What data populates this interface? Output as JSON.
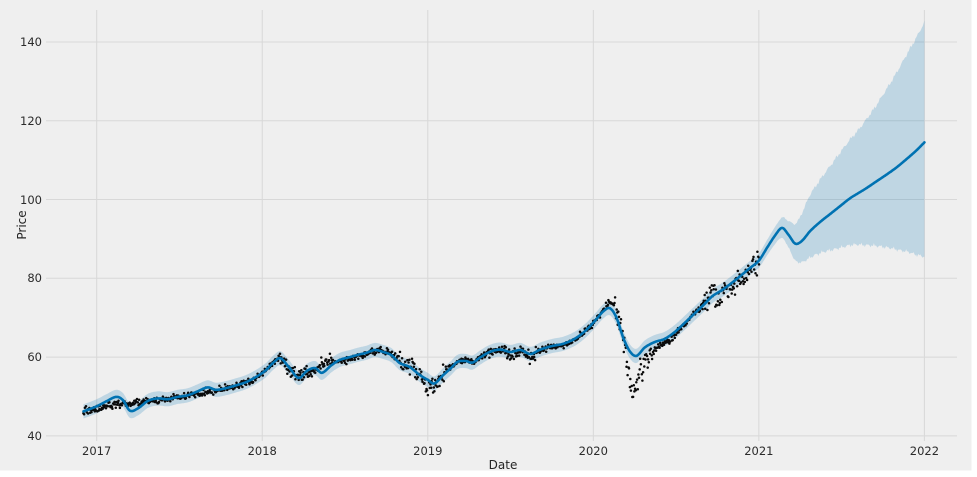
{
  "figure": {
    "bg_color": "#efefef",
    "page_bg": "#ffffff",
    "fig_width": 971.5,
    "fig_height": 470.5
  },
  "axes": {
    "xlabel": "Date",
    "ylabel": "Price",
    "grid_color": "#d8d8d8",
    "tick_text_color": "#2b2b2b",
    "x_ticks": [
      {
        "value": 2017,
        "label": "2017"
      },
      {
        "value": 2018,
        "label": "2018"
      },
      {
        "value": 2019,
        "label": "2019"
      },
      {
        "value": 2020,
        "label": "2020"
      },
      {
        "value": 2021,
        "label": "2021"
      },
      {
        "value": 2022,
        "label": "2022"
      }
    ],
    "y_ticks": [
      {
        "value": 40,
        "label": "40"
      },
      {
        "value": 60,
        "label": "60"
      },
      {
        "value": 80,
        "label": "80"
      },
      {
        "value": 100,
        "label": "100"
      },
      {
        "value": 120,
        "label": "120"
      },
      {
        "value": 140,
        "label": "140"
      }
    ]
  },
  "chart_data": {
    "type": "line",
    "subtype": "forecast-with-uncertainty-band-and-observed-scatter",
    "title": "",
    "xlabel": "Date",
    "ylabel": "Price",
    "x_range": [
      2016.71,
      2022.2
    ],
    "y_range": [
      38.7,
      148.2
    ],
    "grid": true,
    "legend": "none",
    "series": [
      {
        "name": "observed",
        "type": "scatter",
        "color": "#0a0a0a",
        "marker_radius": 1.25,
        "t_start": 2016.92,
        "t_end": 2021.005,
        "sample_step": 0.004,
        "seed": 42,
        "noise_sigma_default": 0.45,
        "noise_sigma_segments": [
          [
            2018.09,
            2018.42,
            0.9
          ],
          [
            2018.83,
            2019.1,
            1.1
          ],
          [
            2019.46,
            2019.66,
            0.8
          ],
          [
            2020.13,
            2020.36,
            1.7
          ],
          [
            2020.66,
            2021.01,
            1.5
          ]
        ],
        "keypoints": [
          [
            2016.92,
            46.3
          ],
          [
            2017.0,
            46.8
          ],
          [
            2017.1,
            47.8
          ],
          [
            2017.2,
            48.2
          ],
          [
            2017.3,
            48.7
          ],
          [
            2017.4,
            49.2
          ],
          [
            2017.5,
            49.8
          ],
          [
            2017.6,
            50.6
          ],
          [
            2017.7,
            51.3
          ],
          [
            2017.8,
            52.2
          ],
          [
            2017.9,
            53.4
          ],
          [
            2017.96,
            54.5
          ],
          [
            2018.02,
            56.5
          ],
          [
            2018.07,
            58.7
          ],
          [
            2018.11,
            59.8
          ],
          [
            2018.15,
            57.5
          ],
          [
            2018.19,
            56.0
          ],
          [
            2018.23,
            55.0
          ],
          [
            2018.28,
            56.2
          ],
          [
            2018.33,
            57.0
          ],
          [
            2018.38,
            58.5
          ],
          [
            2018.44,
            59.2
          ],
          [
            2018.5,
            59.0
          ],
          [
            2018.56,
            59.8
          ],
          [
            2018.62,
            60.8
          ],
          [
            2018.68,
            61.6
          ],
          [
            2018.74,
            61.5
          ],
          [
            2018.8,
            60.2
          ],
          [
            2018.86,
            58.5
          ],
          [
            2018.91,
            57.5
          ],
          [
            2018.95,
            55.0
          ],
          [
            2019.0,
            52.5
          ],
          [
            2019.03,
            52.8
          ],
          [
            2019.07,
            54.8
          ],
          [
            2019.12,
            56.8
          ],
          [
            2019.17,
            58.3
          ],
          [
            2019.22,
            59.2
          ],
          [
            2019.27,
            58.7
          ],
          [
            2019.32,
            60.0
          ],
          [
            2019.38,
            61.2
          ],
          [
            2019.44,
            61.7
          ],
          [
            2019.5,
            60.8
          ],
          [
            2019.56,
            61.4
          ],
          [
            2019.62,
            60.2
          ],
          [
            2019.68,
            61.8
          ],
          [
            2019.75,
            62.7
          ],
          [
            2019.82,
            63.2
          ],
          [
            2019.89,
            64.6
          ],
          [
            2019.95,
            66.8
          ],
          [
            2020.01,
            69.3
          ],
          [
            2020.06,
            71.8
          ],
          [
            2020.1,
            73.8
          ],
          [
            2020.13,
            73.0
          ],
          [
            2020.16,
            68.5
          ],
          [
            2020.19,
            61.0
          ],
          [
            2020.22,
            53.5
          ],
          [
            2020.245,
            51.0
          ],
          [
            2020.27,
            54.5
          ],
          [
            2020.31,
            58.5
          ],
          [
            2020.36,
            61.0
          ],
          [
            2020.41,
            63.0
          ],
          [
            2020.46,
            64.0
          ],
          [
            2020.51,
            66.5
          ],
          [
            2020.57,
            69.0
          ],
          [
            2020.63,
            72.0
          ],
          [
            2020.68,
            74.5
          ],
          [
            2020.72,
            76.0
          ],
          [
            2020.76,
            74.8
          ],
          [
            2020.8,
            76.8
          ],
          [
            2020.85,
            78.2
          ],
          [
            2020.9,
            80.0
          ],
          [
            2020.95,
            82.3
          ],
          [
            2021.0,
            84.5
          ]
        ]
      },
      {
        "name": "forecast_yhat",
        "type": "line",
        "color": "#0072b2",
        "width": 2.6,
        "points": [
          [
            2016.92,
            46.2
          ],
          [
            2017.0,
            47.5
          ],
          [
            2017.06,
            48.8
          ],
          [
            2017.12,
            49.9
          ],
          [
            2017.16,
            49.0
          ],
          [
            2017.2,
            46.4
          ],
          [
            2017.25,
            47.0
          ],
          [
            2017.31,
            48.9
          ],
          [
            2017.37,
            49.5
          ],
          [
            2017.43,
            49.3
          ],
          [
            2017.49,
            49.9
          ],
          [
            2017.55,
            50.3
          ],
          [
            2017.61,
            51.3
          ],
          [
            2017.67,
            52.3
          ],
          [
            2017.72,
            51.7
          ],
          [
            2017.78,
            52.1
          ],
          [
            2017.84,
            52.8
          ],
          [
            2017.9,
            53.6
          ],
          [
            2017.96,
            54.9
          ],
          [
            2018.02,
            56.6
          ],
          [
            2018.07,
            58.7
          ],
          [
            2018.11,
            59.7
          ],
          [
            2018.16,
            57.5
          ],
          [
            2018.22,
            54.7
          ],
          [
            2018.27,
            56.5
          ],
          [
            2018.32,
            57.2
          ],
          [
            2018.36,
            56.0
          ],
          [
            2018.42,
            58.0
          ],
          [
            2018.47,
            59.3
          ],
          [
            2018.53,
            60.0
          ],
          [
            2018.58,
            60.6
          ],
          [
            2018.63,
            61.1
          ],
          [
            2018.68,
            61.8
          ],
          [
            2018.73,
            61.3
          ],
          [
            2018.78,
            60.5
          ],
          [
            2018.83,
            58.5
          ],
          [
            2018.89,
            57.5
          ],
          [
            2018.95,
            55.5
          ],
          [
            2019.0,
            54.2
          ],
          [
            2019.04,
            53.3
          ],
          [
            2019.09,
            55.3
          ],
          [
            2019.14,
            57.2
          ],
          [
            2019.18,
            58.8
          ],
          [
            2019.23,
            59.0
          ],
          [
            2019.27,
            58.6
          ],
          [
            2019.32,
            60.0
          ],
          [
            2019.38,
            61.4
          ],
          [
            2019.44,
            61.9
          ],
          [
            2019.5,
            61.3
          ],
          [
            2019.56,
            61.8
          ],
          [
            2019.62,
            60.8
          ],
          [
            2019.68,
            61.9
          ],
          [
            2019.75,
            62.8
          ],
          [
            2019.82,
            63.4
          ],
          [
            2019.89,
            64.7
          ],
          [
            2019.95,
            66.6
          ],
          [
            2020.01,
            69.2
          ],
          [
            2020.06,
            71.6
          ],
          [
            2020.1,
            72.4
          ],
          [
            2020.14,
            70.0
          ],
          [
            2020.18,
            65.0
          ],
          [
            2020.22,
            61.5
          ],
          [
            2020.26,
            60.3
          ],
          [
            2020.31,
            62.4
          ],
          [
            2020.37,
            63.8
          ],
          [
            2020.43,
            64.6
          ],
          [
            2020.49,
            66.3
          ],
          [
            2020.55,
            68.6
          ],
          [
            2020.61,
            71.0
          ],
          [
            2020.67,
            73.4
          ],
          [
            2020.72,
            75.5
          ],
          [
            2020.77,
            76.8
          ],
          [
            2020.82,
            78.3
          ],
          [
            2020.88,
            80.3
          ],
          [
            2020.94,
            82.4
          ],
          [
            2021.0,
            84.5
          ],
          [
            2021.05,
            87.8
          ],
          [
            2021.1,
            91.0
          ],
          [
            2021.14,
            92.8
          ],
          [
            2021.18,
            91.0
          ],
          [
            2021.22,
            88.8
          ],
          [
            2021.26,
            89.5
          ],
          [
            2021.31,
            92.0
          ],
          [
            2021.37,
            94.3
          ],
          [
            2021.43,
            96.3
          ],
          [
            2021.49,
            98.3
          ],
          [
            2021.55,
            100.3
          ],
          [
            2021.6,
            101.6
          ],
          [
            2021.65,
            102.9
          ],
          [
            2021.71,
            104.6
          ],
          [
            2021.77,
            106.3
          ],
          [
            2021.83,
            108.1
          ],
          [
            2021.89,
            110.2
          ],
          [
            2021.95,
            112.4
          ],
          [
            2022.0,
            114.5
          ]
        ]
      },
      {
        "name": "uncertainty_interval",
        "type": "band",
        "color": "#0072b2",
        "opacity": 0.2,
        "t_end": 2022.0,
        "edge_noise": 0.55,
        "noise_start": 2021.08,
        "offsets": [
          [
            2016.92,
            1.8,
            1.8
          ],
          [
            2021.0,
            1.8,
            1.8
          ],
          [
            2021.06,
            2.0,
            2.0
          ],
          [
            2021.12,
            2.3,
            2.3
          ],
          [
            2021.17,
            3.0,
            3.2
          ],
          [
            2021.22,
            4.3,
            5.0
          ],
          [
            2021.3,
            6.5,
            9.0
          ],
          [
            2021.4,
            8.5,
            11.5
          ],
          [
            2021.5,
            10.8,
            13.8
          ],
          [
            2021.6,
            13.0,
            16.0
          ],
          [
            2021.7,
            16.0,
            19.0
          ],
          [
            2021.8,
            19.5,
            22.8
          ],
          [
            2021.9,
            23.8,
            26.8
          ],
          [
            2022.0,
            29.0,
            30.5
          ]
        ]
      }
    ]
  }
}
